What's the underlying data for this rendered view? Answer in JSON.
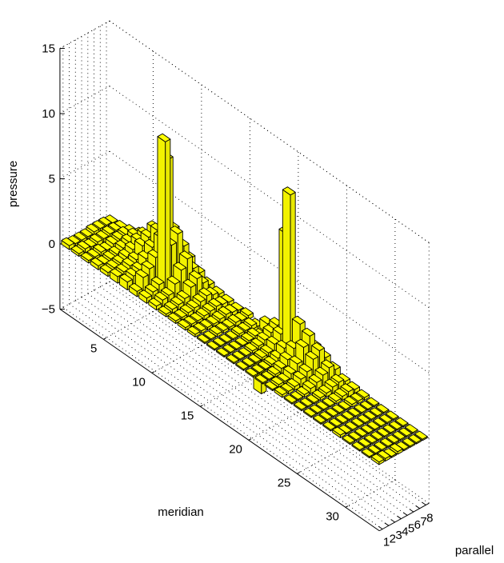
{
  "chart_data": {
    "type": "bar3",
    "zlabel": "pressure",
    "xlabel": "parallel",
    "ylabel": "meridian",
    "zlim": [
      -5,
      15
    ],
    "z_ticks": [
      "15",
      "10",
      "5",
      "0",
      "−5"
    ],
    "meridian_ticks": [
      "5",
      "10",
      "15",
      "20",
      "25",
      "30"
    ],
    "parallel_ticks": [
      "1",
      "2",
      "3",
      "4",
      "5",
      "6",
      "7",
      "8"
    ],
    "grid": true,
    "bar_color": "#ffff00",
    "edge_color": "#000000",
    "parallels": 8,
    "meridians": 33,
    "values": [
      [
        0.3,
        0.2,
        0.2,
        0.3,
        0.3,
        0.5,
        0.6,
        0.4,
        0.4,
        0.3,
        0.2,
        0.2,
        0.2,
        0.2,
        0.1,
        0.1,
        0.1,
        0.1,
        0.1,
        0.1,
        0.1,
        0.1,
        0.2,
        0.1,
        0.1,
        0.1,
        0.1,
        0.1,
        0.2,
        0.1,
        0.1,
        0.1,
        0.2
      ],
      [
        0.2,
        0.3,
        0.2,
        0.2,
        0.4,
        0.6,
        0.8,
        1.2,
        0.6,
        0.5,
        0.3,
        0.2,
        0.2,
        0.2,
        0.1,
        0.1,
        0.1,
        0.1,
        0.1,
        0.1,
        0.1,
        0.2,
        0.2,
        0.1,
        0.1,
        0.1,
        0.1,
        0.1,
        0.1,
        0.1,
        0.1,
        0.1,
        0.2
      ],
      [
        0.2,
        0.2,
        0.3,
        0.3,
        0.5,
        0.8,
        1.0,
        1.6,
        0.9,
        0.6,
        0.4,
        0.3,
        0.2,
        0.2,
        0.2,
        0.1,
        0.1,
        0.1,
        0.1,
        0.1,
        0.2,
        0.2,
        0.3,
        0.2,
        0.1,
        0.1,
        0.1,
        0.1,
        0.1,
        0.1,
        0.1,
        0.1,
        0.1
      ],
      [
        0.2,
        0.3,
        0.2,
        0.4,
        0.7,
        1.0,
        1.6,
        2.2,
        11.6,
        1.2,
        0.6,
        0.4,
        0.3,
        0.2,
        0.2,
        0.1,
        0.1,
        0.2,
        0.2,
        0.2,
        0.4,
        0.5,
        0.6,
        0.4,
        0.2,
        0.1,
        0.1,
        0.1,
        0.1,
        0.1,
        0.1,
        0.1,
        0.2
      ],
      [
        0.3,
        0.3,
        0.4,
        0.6,
        1.0,
        1.8,
        2.2,
        3.4,
        3.4,
        2.0,
        1.2,
        0.6,
        0.4,
        0.3,
        0.2,
        0.2,
        0.2,
        0.3,
        0.3,
        0.4,
        0.8,
        1.0,
        0.9,
        0.6,
        0.3,
        0.2,
        0.1,
        0.1,
        0.1,
        0.1,
        0.1,
        0.1,
        0.1
      ],
      [
        0.3,
        0.4,
        0.5,
        0.8,
        1.4,
        2.2,
        3.2,
        9.2,
        4.0,
        2.6,
        1.6,
        0.8,
        0.5,
        0.4,
        0.3,
        0.2,
        0.3,
        0.5,
        0.7,
        0.9,
        1.4,
        2.0,
        1.6,
        0.9,
        0.5,
        0.3,
        0.2,
        0.1,
        0.1,
        0.1,
        0.1,
        0.1,
        0.1
      ],
      [
        0.3,
        0.4,
        0.6,
        1.0,
        1.6,
        2.6,
        3.0,
        3.6,
        2.8,
        1.6,
        1.0,
        0.6,
        0.4,
        0.3,
        0.2,
        0.3,
        -4.4,
        0.8,
        1.2,
        12.4,
        3.0,
        2.6,
        2.0,
        1.2,
        0.6,
        0.4,
        0.2,
        0.1,
        0.1,
        0.1,
        0.1,
        0.1,
        0.1
      ],
      [
        0.2,
        0.3,
        0.5,
        0.8,
        1.2,
        1.8,
        -3.8,
        2.0,
        1.6,
        1.0,
        0.6,
        0.4,
        0.3,
        0.2,
        0.3,
        -2.2,
        0.7,
        1.1,
        8.6,
        2.0,
        1.8,
        1.5,
        1.2,
        0.8,
        0.4,
        0.3,
        0.2,
        0.1,
        0.1,
        0.1,
        0.1,
        0.1,
        0.1
      ]
    ]
  }
}
